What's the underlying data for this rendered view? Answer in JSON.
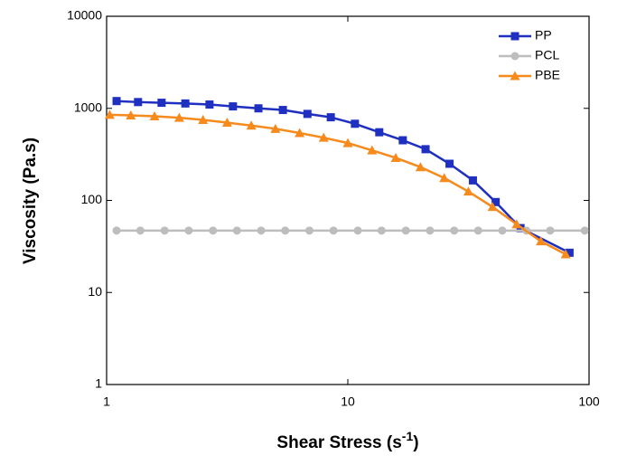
{
  "chart_data": {
    "type": "line",
    "y_label": "Viscosity (Pa.s)",
    "x_label": "Shear Stress (s",
    "x_label_sup": "-1",
    "x_label_end": ")",
    "xlog": true,
    "ylog": true,
    "xlim": [
      1,
      100
    ],
    "ylim": [
      1,
      10000
    ],
    "xticks": [
      1,
      10,
      100
    ],
    "yticks": [
      1,
      10,
      100,
      1000,
      10000
    ],
    "legend": "upper right",
    "series": [
      {
        "name": "PP",
        "color": "#1f2fc0",
        "marker": "square",
        "x": [
          1.1,
          1.35,
          1.69,
          2.12,
          2.67,
          3.34,
          4.26,
          5.38,
          6.8,
          8.5,
          10.7,
          13.5,
          16.9,
          21,
          26.4,
          33,
          41,
          52,
          83
        ],
        "values": [
          1200,
          1170,
          1150,
          1130,
          1100,
          1050,
          1000,
          960,
          870,
          800,
          680,
          550,
          450,
          360,
          250,
          165,
          96,
          50,
          27
        ]
      },
      {
        "name": "PCL",
        "color": "#bdbdbd",
        "marker": "circle",
        "x": [
          1.1,
          1.38,
          1.74,
          2.19,
          2.76,
          3.47,
          4.37,
          5.5,
          6.93,
          8.72,
          11,
          13.8,
          17.4,
          21.9,
          27.6,
          34.7,
          43.7,
          55,
          69,
          96
        ],
        "values": [
          47,
          47,
          47,
          47,
          47,
          47,
          47,
          47,
          47,
          47,
          47,
          47,
          47,
          47,
          47,
          47,
          47,
          47,
          47,
          47
        ]
      },
      {
        "name": "PBE",
        "color": "#f78a1d",
        "marker": "triangle",
        "x": [
          1.03,
          1.26,
          1.58,
          2,
          2.51,
          3.16,
          3.98,
          5.01,
          6.31,
          7.94,
          10,
          12.6,
          15.8,
          20,
          25.1,
          31.6,
          39.8,
          50.1,
          63.1,
          80
        ],
        "values": [
          850,
          840,
          820,
          790,
          750,
          700,
          650,
          600,
          540,
          480,
          420,
          350,
          290,
          230,
          175,
          125,
          85,
          55,
          36,
          26
        ]
      }
    ]
  }
}
